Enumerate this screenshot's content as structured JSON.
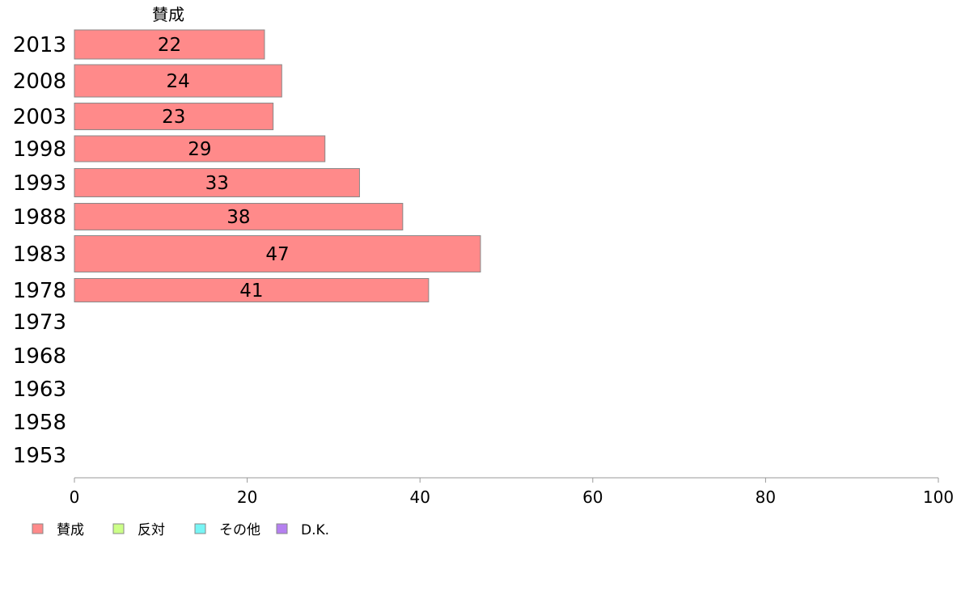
{
  "chart_data": {
    "type": "bar",
    "orientation": "horizontal",
    "stacked": true,
    "categories": [
      "2013",
      "2008",
      "2003",
      "1998",
      "1993",
      "1988",
      "1983",
      "1978",
      "1973",
      "1968",
      "1963",
      "1958",
      "1953"
    ],
    "series": [
      {
        "name": "賛成",
        "color": "#ff8a8a",
        "values": [
          22,
          24,
          23,
          29,
          33,
          38,
          47,
          41,
          null,
          null,
          null,
          null,
          null
        ]
      },
      {
        "name": "反対",
        "color": "#ccff88",
        "values": [
          null,
          null,
          null,
          null,
          null,
          null,
          null,
          null,
          null,
          null,
          null,
          null,
          null
        ]
      },
      {
        "name": "その他",
        "color": "#77f5f5",
        "values": [
          null,
          null,
          null,
          null,
          null,
          null,
          null,
          null,
          null,
          null,
          null,
          null,
          null
        ]
      },
      {
        "name": "D.K.",
        "color": "#b580f0",
        "values": [
          null,
          null,
          null,
          null,
          null,
          null,
          null,
          null,
          null,
          null,
          null,
          null,
          null
        ]
      }
    ],
    "series_header": "賛成",
    "xlim": [
      0,
      100
    ],
    "xticks": [
      0,
      20,
      40,
      60,
      80,
      100
    ],
    "grid": false,
    "legend_position": "bottom-left"
  }
}
